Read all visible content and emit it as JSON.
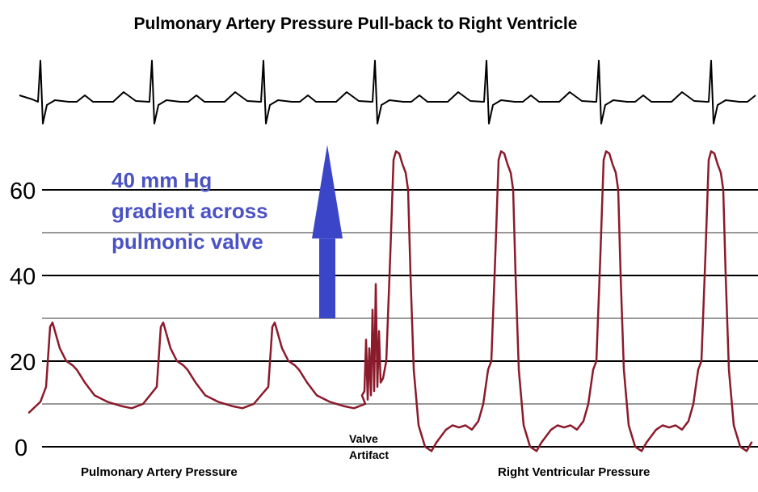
{
  "chart_data": {
    "type": "line",
    "title": "Pulmonary Artery Pressure Pull-back to Right Ventricle",
    "yticks": [
      0,
      20,
      40,
      60
    ],
    "ylim": [
      0,
      70
    ],
    "gridlines": [
      0,
      10,
      20,
      30,
      40,
      50,
      60
    ],
    "annotation": [
      "40 mm Hg",
      "gradient across",
      "pulmonic valve"
    ],
    "segment_labels": {
      "left": "Pulmonary Artery Pressure",
      "right": "Right Ventricular Pressure",
      "artifact": [
        "Valve",
        "Artifact"
      ]
    },
    "series": [
      {
        "name": "Pulmonary Artery Pressure",
        "peak_systolic": 29,
        "dicrotic_notch": 19,
        "diastolic": 9,
        "beats": 3
      },
      {
        "name": "Right Ventricular Pressure",
        "peak_systolic": 69,
        "end_diastolic": 5,
        "minimum": -1,
        "beats": 4
      }
    ],
    "gradient_mmHg": 40,
    "colors": {
      "pressure": "#8b1a2b",
      "arrow": "#3b45c8",
      "gridline_major": "#000000",
      "gridline_minor": "#999999",
      "ecg": "#000000"
    }
  }
}
